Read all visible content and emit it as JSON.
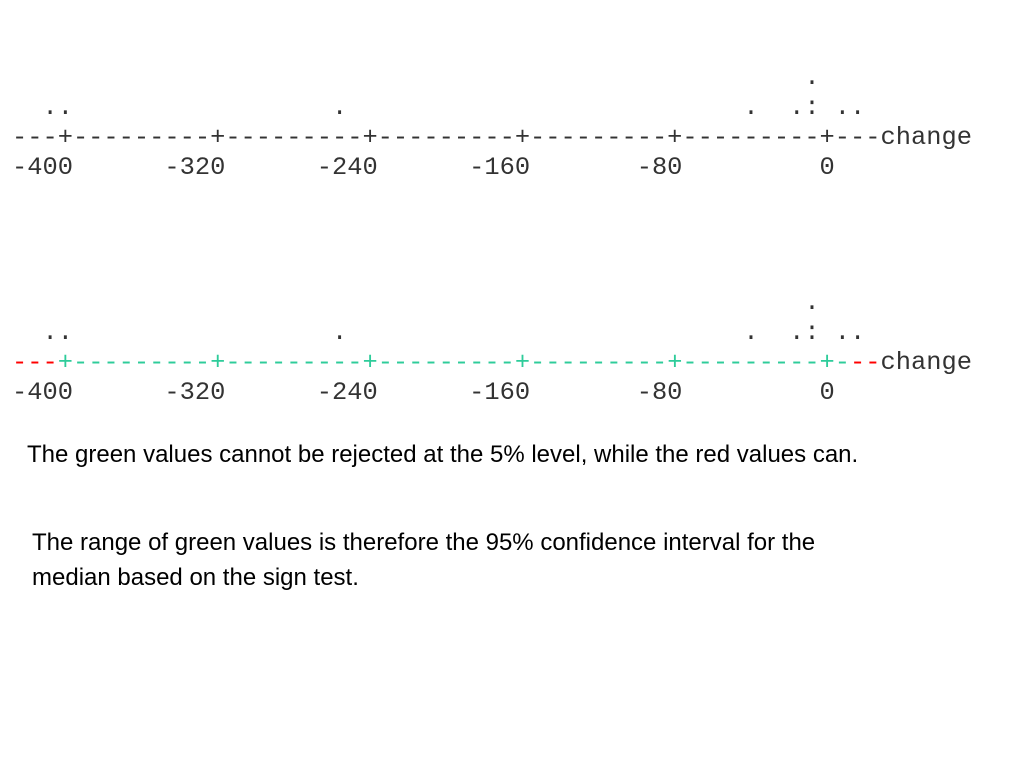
{
  "plots": [
    {
      "dots_top": "                                                    .",
      "dots": "  ..                 .                          .  .: ..",
      "axis": [
        "---+---------+---------+---------+---------+---------+---"
      ],
      "axis_label": "change",
      "tick_labels": "-400      -320      -240      -160       -80         0"
    },
    {
      "dots_top": "                                                    .",
      "dots": "  ..                 .                          .  .: ..",
      "axis": [
        "---",
        "+---------+---------+---------+---------+---------+-",
        "--"
      ],
      "axis_label": "change",
      "tick_labels": "-400      -320      -240      -160       -80         0"
    }
  ],
  "paragraphs": [
    "The green values cannot be rejected at the 5% level, while the red values can.",
    "The range of green values is therefore the 95% confidence interval for the median based on the sign test."
  ]
}
